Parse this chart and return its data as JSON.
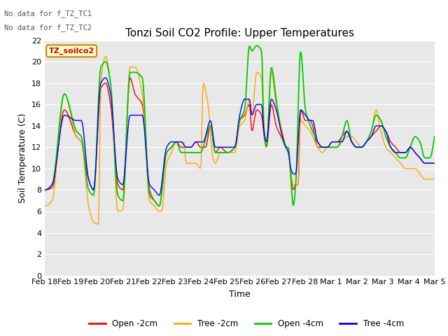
{
  "title": "Tonzi Soil CO2 Profile: Upper Temperatures",
  "xlabel": "Time",
  "ylabel": "Soil Temperature (C)",
  "annotation1": "No data for f_TZ_TC1",
  "annotation2": "No data for f_TZ_TC2",
  "legend_box_label": "TZ_soilco2",
  "ylim": [
    0,
    22
  ],
  "yticks": [
    0,
    2,
    4,
    6,
    8,
    10,
    12,
    14,
    16,
    18,
    20,
    22
  ],
  "colors": {
    "open_2cm": "#ff0000",
    "tree_2cm": "#ffa500",
    "open_4cm": "#00cc00",
    "tree_4cm": "#0000ff"
  },
  "legend_labels": [
    "Open -2cm",
    "Tree -2cm",
    "Open -4cm",
    "Tree -4cm"
  ],
  "xtick_labels": [
    "Feb 18",
    "Feb 19",
    "Feb 20",
    "Feb 21",
    "Feb 22",
    "Feb 23",
    "Feb 24",
    "Feb 25",
    "Feb 26",
    "Feb 27",
    "Feb 28",
    "Mar 1",
    "Mar 2",
    "Mar 3",
    "Mar 4",
    "Mar 5"
  ],
  "plot_bg_color": "#e8e8e8",
  "fig_bg_color": "#f0f0f0",
  "title_fontsize": 11,
  "axis_label_fontsize": 9,
  "tick_fontsize": 8,
  "linewidth": 1.0
}
